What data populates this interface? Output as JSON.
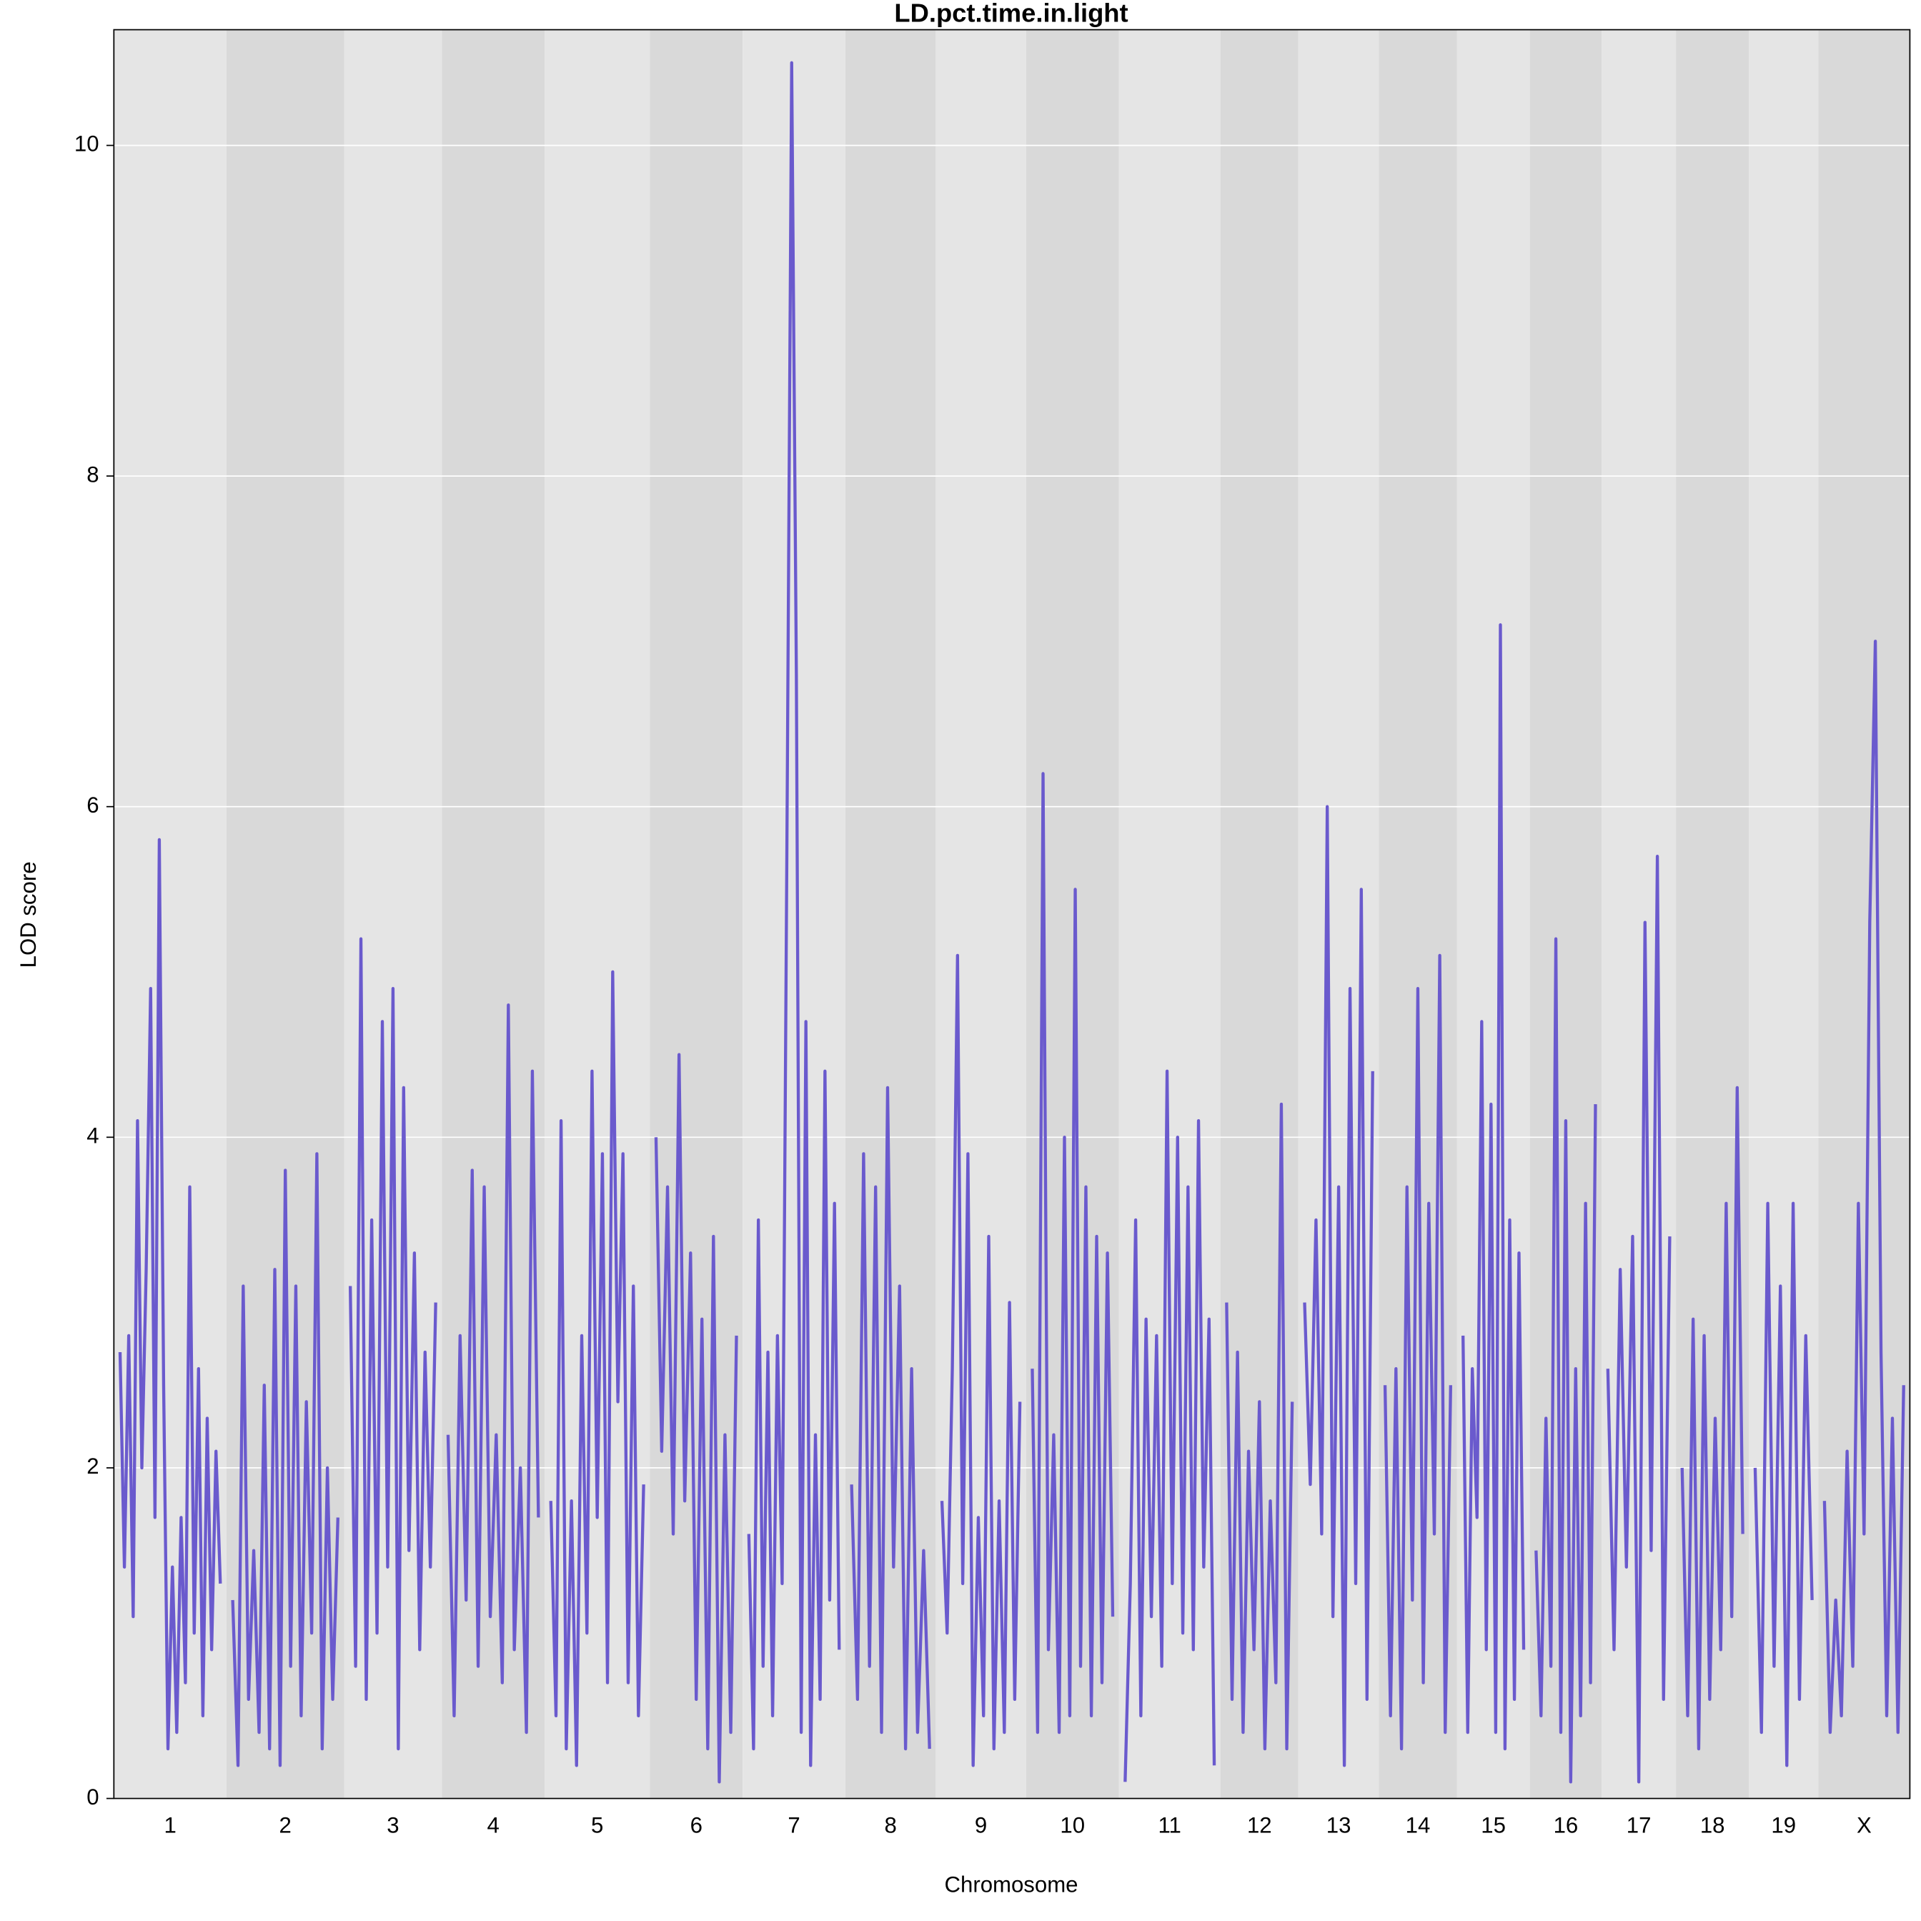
{
  "chart_data": {
    "type": "line",
    "title": "LD.pct.time.in.light",
    "x_label": "Chromosome",
    "y_label": "LOD score",
    "color": "#6a5acd",
    "grid": true,
    "ylim": [
      0,
      10.7
    ],
    "yticks": [
      0,
      2,
      4,
      6,
      8,
      10
    ],
    "categories": [
      "1",
      "2",
      "3",
      "4",
      "5",
      "6",
      "7",
      "8",
      "9",
      "10",
      "11",
      "12",
      "13",
      "14",
      "15",
      "16",
      "17",
      "18",
      "19",
      "X"
    ],
    "values": [
      [
        2.7,
        1.4,
        2.8,
        1.1,
        4.1,
        2.0,
        3.2,
        4.9,
        1.7,
        5.8,
        2.5,
        0.3,
        1.4,
        0.4,
        1.7,
        0.7,
        3.7,
        1.0,
        2.6,
        0.5,
        2.3,
        0.9,
        2.1,
        1.3
      ],
      [
        1.2,
        0.2,
        3.1,
        0.6,
        1.5,
        0.4,
        2.5,
        0.3,
        3.2,
        0.2,
        3.8,
        0.8,
        3.1,
        0.5,
        2.4,
        1.0,
        3.9,
        0.3,
        2.0,
        0.6,
        1.7
      ],
      [
        3.1,
        0.8,
        5.2,
        0.6,
        3.5,
        1.0,
        4.7,
        1.4,
        4.9,
        0.3,
        4.3,
        1.5,
        3.3,
        0.9,
        2.7,
        1.4,
        3.0
      ],
      [
        2.2,
        0.5,
        2.8,
        1.2,
        3.8,
        0.8,
        3.7,
        1.1,
        2.2,
        0.7,
        4.8,
        0.9,
        2.0,
        0.4,
        4.4,
        1.7
      ],
      [
        1.8,
        0.5,
        4.1,
        0.3,
        1.8,
        0.2,
        2.8,
        1.0,
        4.4,
        1.7,
        3.9,
        0.7,
        5.0,
        2.4,
        3.9,
        0.7,
        3.1,
        0.5,
        1.9
      ],
      [
        4.0,
        2.1,
        3.7,
        1.6,
        4.5,
        1.8,
        3.3,
        0.6,
        2.9,
        0.3,
        3.4,
        0.1,
        2.2,
        0.4,
        2.8
      ],
      [
        1.6,
        0.3,
        3.5,
        0.8,
        2.7,
        0.5,
        2.8,
        1.3,
        5.7,
        10.5,
        6.8,
        0.4,
        4.7,
        0.2,
        2.2,
        0.6,
        4.4,
        1.2,
        3.6,
        0.9
      ],
      [
        1.9,
        0.6,
        3.9,
        0.8,
        3.7,
        0.4,
        4.3,
        1.4,
        3.1,
        0.3,
        2.6,
        0.4,
        1.5,
        0.3
      ],
      [
        1.8,
        1.0,
        2.6,
        5.1,
        1.3,
        3.9,
        0.2,
        1.7,
        0.5,
        3.4,
        0.3,
        1.8,
        0.4,
        3.0,
        0.6,
        2.4
      ],
      [
        2.6,
        0.4,
        6.2,
        0.9,
        2.2,
        0.4,
        4.0,
        0.5,
        5.5,
        0.8,
        3.7,
        0.5,
        3.4,
        0.7,
        3.3,
        1.1
      ],
      [
        0.1,
        1.3,
        3.5,
        0.5,
        2.9,
        1.1,
        2.8,
        0.8,
        4.4,
        1.3,
        4.0,
        1.0,
        3.7,
        0.9,
        4.1,
        1.4,
        2.9,
        0.2
      ],
      [
        3.0,
        0.6,
        2.7,
        0.4,
        2.1,
        0.9,
        2.4,
        0.3,
        1.8,
        0.7,
        4.2,
        0.3,
        2.4
      ],
      [
        3.0,
        1.9,
        3.5,
        1.6,
        6.0,
        1.1,
        3.7,
        0.2,
        4.9,
        1.3,
        5.5,
        0.6,
        4.4
      ],
      [
        2.5,
        0.5,
        2.6,
        0.3,
        3.7,
        1.2,
        4.9,
        0.7,
        3.6,
        1.6,
        5.1,
        0.4,
        2.5
      ],
      [
        2.8,
        0.4,
        2.6,
        1.7,
        4.7,
        0.9,
        4.2,
        0.4,
        7.1,
        0.3,
        3.5,
        0.6,
        3.3,
        0.9
      ],
      [
        1.5,
        0.5,
        2.3,
        0.8,
        5.2,
        0.4,
        4.1,
        0.1,
        2.6,
        0.5,
        3.6,
        0.7,
        4.2
      ],
      [
        2.6,
        0.9,
        3.2,
        1.4,
        3.4,
        0.1,
        5.3,
        1.5,
        5.7,
        0.6,
        3.4
      ],
      [
        2.0,
        0.5,
        2.9,
        0.3,
        2.8,
        0.6,
        2.3,
        0.9,
        3.6,
        1.1,
        4.3,
        1.6
      ],
      [
        2.0,
        0.4,
        3.6,
        0.8,
        3.1,
        0.2,
        3.6,
        0.6,
        2.8,
        1.2
      ],
      [
        1.8,
        0.4,
        1.2,
        0.5,
        2.1,
        0.8,
        3.6,
        1.6,
        5.3,
        7.0,
        2.7,
        0.5,
        2.3,
        0.4,
        2.5
      ]
    ]
  }
}
